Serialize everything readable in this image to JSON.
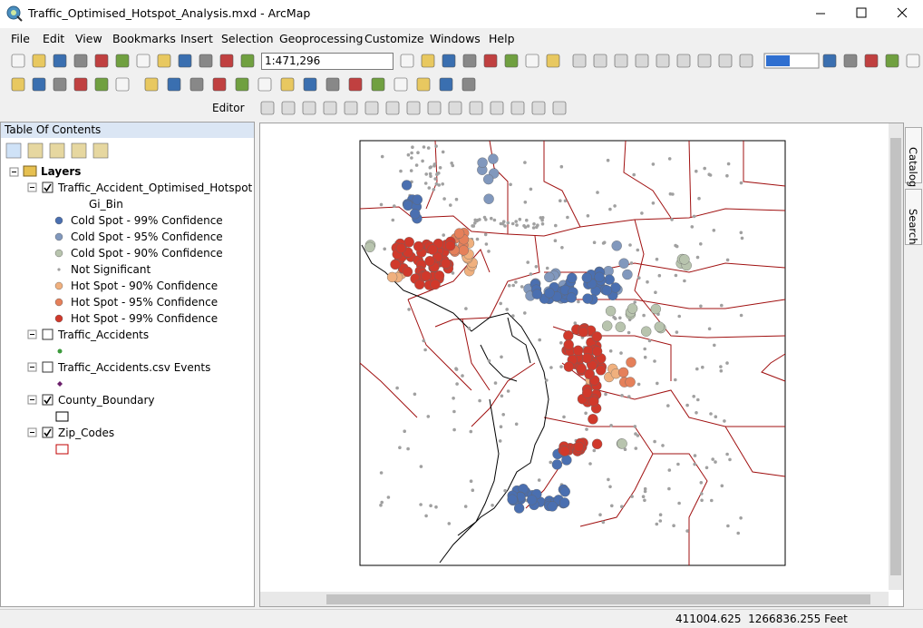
{
  "window": {
    "title": "Traffic_Optimised_Hotspot_Analysis.mxd - ArcMap"
  },
  "menu": [
    "File",
    "Edit",
    "View",
    "Bookmarks",
    "Insert",
    "Selection",
    "Geoprocessing",
    "Customize",
    "Windows",
    "Help"
  ],
  "toolbar": {
    "scale": "1:471,296",
    "editor": "Editor"
  },
  "toc": {
    "title": "Table Of Contents",
    "root": "Layers",
    "layers": [
      {
        "name": "Traffic_Accident_Optimised_Hotspot",
        "checked": true,
        "field": "Gi_Bin",
        "legend": [
          {
            "label": "Cold Spot - 99% Confidence",
            "color": "#4a6fb0"
          },
          {
            "label": "Cold Spot - 95% Confidence",
            "color": "#8198bd"
          },
          {
            "label": "Cold Spot - 90% Confidence",
            "color": "#b8c4ae"
          },
          {
            "label": "Not Significant",
            "color": "#a0a0a0"
          },
          {
            "label": "Hot Spot - 90% Confidence",
            "color": "#f0b07e"
          },
          {
            "label": "Hot Spot - 95% Confidence",
            "color": "#e5805a"
          },
          {
            "label": "Hot Spot - 99% Confidence",
            "color": "#d0392b"
          }
        ]
      },
      {
        "name": "Traffic_Accidents",
        "checked": false,
        "symbol": "dot",
        "color": "#3c9a3c"
      },
      {
        "name": "Traffic_Accidents.csv Events",
        "checked": false,
        "symbol": "diamond",
        "color": "#6b1f6b"
      },
      {
        "name": "County_Boundary",
        "checked": true,
        "symbol": "box",
        "color": "#000000"
      },
      {
        "name": "Zip_Codes",
        "checked": true,
        "symbol": "box",
        "color": "#c00000"
      }
    ]
  },
  "side_tabs": [
    "Catalog",
    "Search"
  ],
  "status": {
    "coordinates": "411004.625  1266836.255 Feet"
  }
}
